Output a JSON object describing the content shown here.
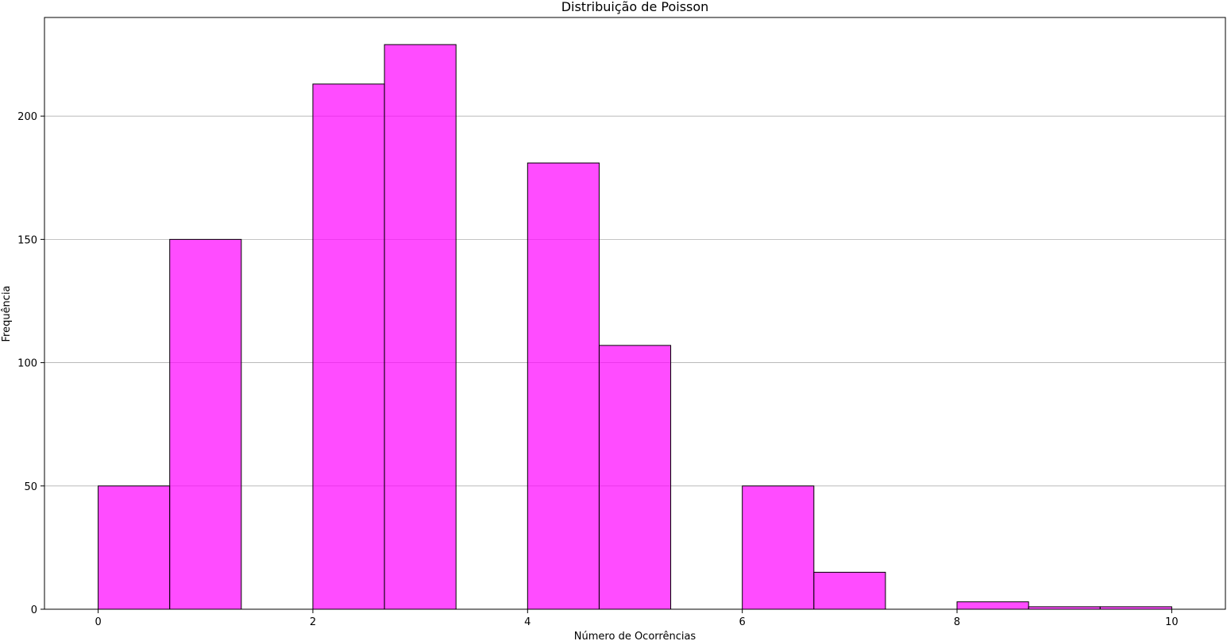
{
  "chart_data": {
    "type": "bar",
    "title": "Distribuição de Poisson",
    "xlabel": "Número de Ocorrências",
    "ylabel": "Frequência",
    "xlim": [
      -0.5,
      10.5
    ],
    "ylim": [
      0,
      240
    ],
    "bins": [
      {
        "x0": 0.0,
        "x1": 0.6667,
        "value": 50
      },
      {
        "x0": 0.6667,
        "x1": 1.3333,
        "value": 150
      },
      {
        "x0": 1.3333,
        "x1": 2.0,
        "value": 0
      },
      {
        "x0": 2.0,
        "x1": 2.6667,
        "value": 213
      },
      {
        "x0": 2.6667,
        "x1": 3.3333,
        "value": 229
      },
      {
        "x0": 3.3333,
        "x1": 4.0,
        "value": 0
      },
      {
        "x0": 4.0,
        "x1": 4.6667,
        "value": 181
      },
      {
        "x0": 4.6667,
        "x1": 5.3333,
        "value": 107
      },
      {
        "x0": 5.3333,
        "x1": 6.0,
        "value": 0
      },
      {
        "x0": 6.0,
        "x1": 6.6667,
        "value": 50
      },
      {
        "x0": 6.6667,
        "x1": 7.3333,
        "value": 15
      },
      {
        "x0": 7.3333,
        "x1": 8.0,
        "value": 0
      },
      {
        "x0": 8.0,
        "x1": 8.6667,
        "value": 3
      },
      {
        "x0": 8.6667,
        "x1": 9.3333,
        "value": 1
      },
      {
        "x0": 9.3333,
        "x1": 10.0,
        "value": 1
      }
    ],
    "x_ticks": [
      0,
      2,
      4,
      6,
      8,
      10
    ],
    "y_ticks": [
      0,
      50,
      100,
      150,
      200
    ],
    "grid": "y",
    "legend": "none",
    "colors": {
      "bar_fill": "#ff00ff",
      "bar_fill_opacity": 0.7,
      "bar_edge": "#000000",
      "grid": "#b0b0b0"
    }
  }
}
